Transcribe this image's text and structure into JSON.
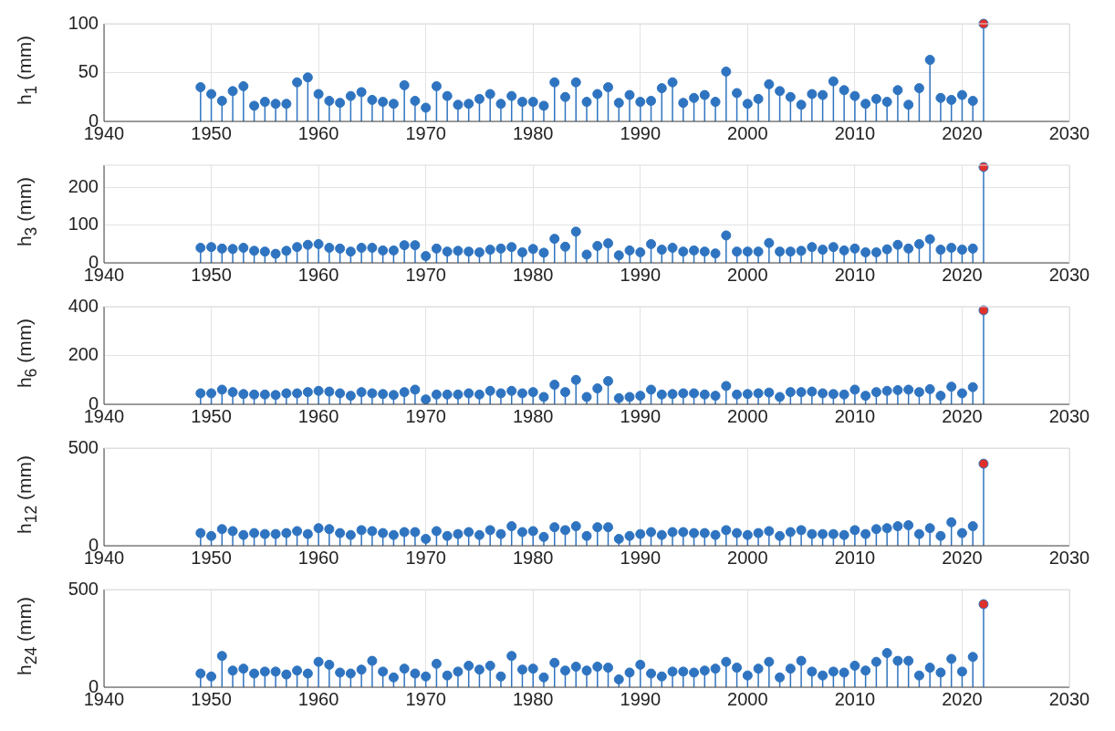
{
  "chart_data": [
    {
      "type": "lollipop",
      "ylabel": "h$_{1}$ (mm)",
      "xlim": [
        1940,
        2030
      ],
      "xticks": [
        1940,
        1950,
        1960,
        1970,
        1980,
        1990,
        2000,
        2010,
        2020,
        2030
      ],
      "ylim": [
        0,
        100
      ],
      "yticks": [
        0,
        50,
        100
      ],
      "grid": true,
      "marker": "circle",
      "x": [
        1949,
        1950,
        1951,
        1952,
        1953,
        1954,
        1955,
        1956,
        1957,
        1958,
        1959,
        1960,
        1961,
        1962,
        1963,
        1964,
        1965,
        1966,
        1967,
        1968,
        1969,
        1970,
        1971,
        1972,
        1973,
        1974,
        1975,
        1976,
        1977,
        1978,
        1979,
        1980,
        1981,
        1982,
        1983,
        1984,
        1985,
        1986,
        1987,
        1988,
        1989,
        1990,
        1991,
        1992,
        1993,
        1994,
        1995,
        1996,
        1997,
        1998,
        1999,
        2000,
        2001,
        2002,
        2003,
        2004,
        2005,
        2006,
        2007,
        2008,
        2009,
        2010,
        2011,
        2012,
        2013,
        2014,
        2015,
        2016,
        2017,
        2018,
        2019,
        2020,
        2021,
        2022
      ],
      "series": [
        {
          "color": "#2f74c0",
          "values": [
            35,
            28,
            21,
            31,
            36,
            16,
            20,
            18,
            18,
            40,
            45,
            28,
            21,
            19,
            26,
            30,
            22,
            20,
            18,
            37,
            21,
            14,
            36,
            26,
            17,
            18,
            23,
            28,
            18,
            26,
            20,
            20,
            16,
            40,
            25,
            40,
            20,
            28,
            35,
            19,
            27,
            20,
            21,
            34,
            40,
            19,
            24,
            27,
            20,
            51,
            29,
            18,
            23,
            38,
            31,
            25,
            17,
            28,
            27,
            41,
            32,
            26,
            18,
            23,
            20,
            32,
            17,
            34,
            63,
            24,
            22,
            27,
            21,
            100
          ],
          "colors": [
            "#2f74c0",
            "#2f74c0",
            "#2f74c0",
            "#2f74c0",
            "#2f74c0",
            "#2f74c0",
            "#2f74c0",
            "#2f74c0",
            "#2f74c0",
            "#2f74c0",
            "#2f74c0",
            "#2f74c0",
            "#2f74c0",
            "#2f74c0",
            "#2f74c0",
            "#2f74c0",
            "#2f74c0",
            "#2f74c0",
            "#2f74c0",
            "#2f74c0",
            "#2f74c0",
            "#2f74c0",
            "#2f74c0",
            "#2f74c0",
            "#2f74c0",
            "#2f74c0",
            "#2f74c0",
            "#2f74c0",
            "#2f74c0",
            "#2f74c0",
            "#2f74c0",
            "#2f74c0",
            "#2f74c0",
            "#2f74c0",
            "#2f74c0",
            "#2f74c0",
            "#2f74c0",
            "#2f74c0",
            "#2f74c0",
            "#2f74c0",
            "#2f74c0",
            "#2f74c0",
            "#2f74c0",
            "#2f74c0",
            "#2f74c0",
            "#2f74c0",
            "#2f74c0",
            "#2f74c0",
            "#2f74c0",
            "#2f74c0",
            "#2f74c0",
            "#2f74c0",
            "#2f74c0",
            "#2f74c0",
            "#2f74c0",
            "#2f74c0",
            "#2f74c0",
            "#2f74c0",
            "#2f74c0",
            "#2f74c0",
            "#2f74c0",
            "#2f74c0",
            "#2f74c0",
            "#2f74c0",
            "#2f74c0",
            "#2f74c0",
            "#2f74c0",
            "#2f74c0",
            "#2f74c0",
            "#2f74c0",
            "#2f74c0",
            "#2f74c0",
            "#2f74c0",
            "#e0302a"
          ]
        }
      ]
    },
    {
      "type": "lollipop",
      "ylabel": "h$_{3}$ (mm)",
      "xlim": [
        1940,
        2030
      ],
      "xticks": [
        1940,
        1950,
        1960,
        1970,
        1980,
        1990,
        2000,
        2010,
        2020,
        2030
      ],
      "ylim": [
        0,
        260
      ],
      "yticks": [
        0,
        100,
        200
      ],
      "grid": true,
      "marker": "circle",
      "x": [
        1949,
        1950,
        1951,
        1952,
        1953,
        1954,
        1955,
        1956,
        1957,
        1958,
        1959,
        1960,
        1961,
        1962,
        1963,
        1964,
        1965,
        1966,
        1967,
        1968,
        1969,
        1970,
        1971,
        1972,
        1973,
        1974,
        1975,
        1976,
        1977,
        1978,
        1979,
        1980,
        1981,
        1982,
        1983,
        1984,
        1985,
        1986,
        1987,
        1988,
        1989,
        1990,
        1991,
        1992,
        1993,
        1994,
        1995,
        1996,
        1997,
        1998,
        1999,
        2000,
        2001,
        2002,
        2003,
        2004,
        2005,
        2006,
        2007,
        2008,
        2009,
        2010,
        2011,
        2012,
        2013,
        2014,
        2015,
        2016,
        2017,
        2018,
        2019,
        2020,
        2021,
        2022
      ],
      "series": [
        {
          "color": "#2f74c0",
          "values": [
            40,
            42,
            38,
            37,
            40,
            32,
            30,
            24,
            32,
            42,
            48,
            50,
            40,
            38,
            30,
            40,
            40,
            33,
            33,
            47,
            47,
            18,
            38,
            30,
            32,
            30,
            28,
            35,
            38,
            42,
            28,
            37,
            27,
            64,
            43,
            83,
            22,
            45,
            52,
            20,
            33,
            28,
            50,
            35,
            40,
            30,
            33,
            30,
            25,
            73,
            30,
            30,
            30,
            53,
            30,
            30,
            32,
            42,
            35,
            42,
            33,
            38,
            28,
            28,
            36,
            48,
            38,
            50,
            63,
            35,
            40,
            35,
            38,
            255
          ],
          "colors": [
            "#2f74c0",
            "#2f74c0",
            "#2f74c0",
            "#2f74c0",
            "#2f74c0",
            "#2f74c0",
            "#2f74c0",
            "#2f74c0",
            "#2f74c0",
            "#2f74c0",
            "#2f74c0",
            "#2f74c0",
            "#2f74c0",
            "#2f74c0",
            "#2f74c0",
            "#2f74c0",
            "#2f74c0",
            "#2f74c0",
            "#2f74c0",
            "#2f74c0",
            "#2f74c0",
            "#2f74c0",
            "#2f74c0",
            "#2f74c0",
            "#2f74c0",
            "#2f74c0",
            "#2f74c0",
            "#2f74c0",
            "#2f74c0",
            "#2f74c0",
            "#2f74c0",
            "#2f74c0",
            "#2f74c0",
            "#2f74c0",
            "#2f74c0",
            "#2f74c0",
            "#2f74c0",
            "#2f74c0",
            "#2f74c0",
            "#2f74c0",
            "#2f74c0",
            "#2f74c0",
            "#2f74c0",
            "#2f74c0",
            "#2f74c0",
            "#2f74c0",
            "#2f74c0",
            "#2f74c0",
            "#2f74c0",
            "#2f74c0",
            "#2f74c0",
            "#2f74c0",
            "#2f74c0",
            "#2f74c0",
            "#2f74c0",
            "#2f74c0",
            "#2f74c0",
            "#2f74c0",
            "#2f74c0",
            "#2f74c0",
            "#2f74c0",
            "#2f74c0",
            "#2f74c0",
            "#2f74c0",
            "#2f74c0",
            "#2f74c0",
            "#2f74c0",
            "#2f74c0",
            "#2f74c0",
            "#2f74c0",
            "#2f74c0",
            "#2f74c0",
            "#2f74c0",
            "#e0302a"
          ]
        }
      ]
    },
    {
      "type": "lollipop",
      "ylabel": "h$_{6}$ (mm)",
      "xlim": [
        1940,
        2030
      ],
      "xticks": [
        1940,
        1950,
        1960,
        1970,
        1980,
        1990,
        2000,
        2010,
        2020,
        2030
      ],
      "ylim": [
        0,
        400
      ],
      "yticks": [
        0,
        200,
        400
      ],
      "grid": true,
      "marker": "circle",
      "x": [
        1949,
        1950,
        1951,
        1952,
        1953,
        1954,
        1955,
        1956,
        1957,
        1958,
        1959,
        1960,
        1961,
        1962,
        1963,
        1964,
        1965,
        1966,
        1967,
        1968,
        1969,
        1970,
        1971,
        1972,
        1973,
        1974,
        1975,
        1976,
        1977,
        1978,
        1979,
        1980,
        1981,
        1982,
        1983,
        1984,
        1985,
        1986,
        1987,
        1988,
        1989,
        1990,
        1991,
        1992,
        1993,
        1994,
        1995,
        1996,
        1997,
        1998,
        1999,
        2000,
        2001,
        2002,
        2003,
        2004,
        2005,
        2006,
        2007,
        2008,
        2009,
        2010,
        2011,
        2012,
        2013,
        2014,
        2015,
        2016,
        2017,
        2018,
        2019,
        2020,
        2021,
        2022
      ],
      "series": [
        {
          "color": "#2f74c0",
          "values": [
            45,
            45,
            60,
            50,
            42,
            40,
            40,
            38,
            45,
            45,
            50,
            55,
            52,
            45,
            35,
            50,
            45,
            42,
            38,
            50,
            60,
            20,
            40,
            40,
            40,
            45,
            40,
            55,
            45,
            55,
            45,
            50,
            30,
            80,
            50,
            100,
            30,
            65,
            95,
            25,
            30,
            35,
            60,
            40,
            42,
            45,
            45,
            40,
            35,
            75,
            40,
            42,
            45,
            48,
            30,
            50,
            50,
            52,
            45,
            42,
            40,
            60,
            35,
            50,
            55,
            58,
            60,
            50,
            62,
            35,
            72,
            45,
            70,
            385
          ],
          "colors": [
            "#2f74c0",
            "#2f74c0",
            "#2f74c0",
            "#2f74c0",
            "#2f74c0",
            "#2f74c0",
            "#2f74c0",
            "#2f74c0",
            "#2f74c0",
            "#2f74c0",
            "#2f74c0",
            "#2f74c0",
            "#2f74c0",
            "#2f74c0",
            "#2f74c0",
            "#2f74c0",
            "#2f74c0",
            "#2f74c0",
            "#2f74c0",
            "#2f74c0",
            "#2f74c0",
            "#2f74c0",
            "#2f74c0",
            "#2f74c0",
            "#2f74c0",
            "#2f74c0",
            "#2f74c0",
            "#2f74c0",
            "#2f74c0",
            "#2f74c0",
            "#2f74c0",
            "#2f74c0",
            "#2f74c0",
            "#2f74c0",
            "#2f74c0",
            "#2f74c0",
            "#2f74c0",
            "#2f74c0",
            "#2f74c0",
            "#2f74c0",
            "#2f74c0",
            "#2f74c0",
            "#2f74c0",
            "#2f74c0",
            "#2f74c0",
            "#2f74c0",
            "#2f74c0",
            "#2f74c0",
            "#2f74c0",
            "#2f74c0",
            "#2f74c0",
            "#2f74c0",
            "#2f74c0",
            "#2f74c0",
            "#2f74c0",
            "#2f74c0",
            "#2f74c0",
            "#2f74c0",
            "#2f74c0",
            "#2f74c0",
            "#2f74c0",
            "#2f74c0",
            "#2f74c0",
            "#2f74c0",
            "#2f74c0",
            "#2f74c0",
            "#2f74c0",
            "#2f74c0",
            "#2f74c0",
            "#2f74c0",
            "#2f74c0",
            "#2f74c0",
            "#2f74c0",
            "#e0302a"
          ]
        }
      ]
    },
    {
      "type": "lollipop",
      "ylabel": "h$_{12}$ (mm)",
      "xlim": [
        1940,
        2030
      ],
      "xticks": [
        1940,
        1950,
        1960,
        1970,
        1980,
        1990,
        2000,
        2010,
        2020,
        2030
      ],
      "ylim": [
        0,
        500
      ],
      "yticks": [
        0,
        500
      ],
      "grid": true,
      "marker": "circle",
      "x": [
        1949,
        1950,
        1951,
        1952,
        1953,
        1954,
        1955,
        1956,
        1957,
        1958,
        1959,
        1960,
        1961,
        1962,
        1963,
        1964,
        1965,
        1966,
        1967,
        1968,
        1969,
        1970,
        1971,
        1972,
        1973,
        1974,
        1975,
        1976,
        1977,
        1978,
        1979,
        1980,
        1981,
        1982,
        1983,
        1984,
        1985,
        1986,
        1987,
        1988,
        1989,
        1990,
        1991,
        1992,
        1993,
        1994,
        1995,
        1996,
        1997,
        1998,
        1999,
        2000,
        2001,
        2002,
        2003,
        2004,
        2005,
        2006,
        2007,
        2008,
        2009,
        2010,
        2011,
        2012,
        2013,
        2014,
        2015,
        2016,
        2017,
        2018,
        2019,
        2020,
        2021,
        2022
      ],
      "series": [
        {
          "color": "#2f74c0",
          "values": [
            65,
            50,
            85,
            75,
            55,
            65,
            60,
            60,
            65,
            75,
            60,
            90,
            85,
            65,
            55,
            80,
            75,
            65,
            55,
            70,
            70,
            35,
            75,
            50,
            60,
            70,
            55,
            80,
            60,
            100,
            70,
            75,
            45,
            95,
            80,
            100,
            50,
            95,
            95,
            35,
            50,
            60,
            70,
            55,
            70,
            70,
            65,
            65,
            55,
            80,
            65,
            55,
            65,
            75,
            50,
            70,
            80,
            60,
            60,
            60,
            55,
            80,
            60,
            85,
            90,
            100,
            105,
            60,
            90,
            50,
            120,
            65,
            100,
            420
          ],
          "colors": [
            "#2f74c0",
            "#2f74c0",
            "#2f74c0",
            "#2f74c0",
            "#2f74c0",
            "#2f74c0",
            "#2f74c0",
            "#2f74c0",
            "#2f74c0",
            "#2f74c0",
            "#2f74c0",
            "#2f74c0",
            "#2f74c0",
            "#2f74c0",
            "#2f74c0",
            "#2f74c0",
            "#2f74c0",
            "#2f74c0",
            "#2f74c0",
            "#2f74c0",
            "#2f74c0",
            "#2f74c0",
            "#2f74c0",
            "#2f74c0",
            "#2f74c0",
            "#2f74c0",
            "#2f74c0",
            "#2f74c0",
            "#2f74c0",
            "#2f74c0",
            "#2f74c0",
            "#2f74c0",
            "#2f74c0",
            "#2f74c0",
            "#2f74c0",
            "#2f74c0",
            "#2f74c0",
            "#2f74c0",
            "#2f74c0",
            "#2f74c0",
            "#2f74c0",
            "#2f74c0",
            "#2f74c0",
            "#2f74c0",
            "#2f74c0",
            "#2f74c0",
            "#2f74c0",
            "#2f74c0",
            "#2f74c0",
            "#2f74c0",
            "#2f74c0",
            "#2f74c0",
            "#2f74c0",
            "#2f74c0",
            "#2f74c0",
            "#2f74c0",
            "#2f74c0",
            "#2f74c0",
            "#2f74c0",
            "#2f74c0",
            "#2f74c0",
            "#2f74c0",
            "#2f74c0",
            "#2f74c0",
            "#2f74c0",
            "#2f74c0",
            "#2f74c0",
            "#2f74c0",
            "#2f74c0",
            "#2f74c0",
            "#2f74c0",
            "#2f74c0",
            "#2f74c0",
            "#e0302a"
          ]
        }
      ]
    },
    {
      "type": "lollipop",
      "ylabel": "h$_{24}$ (mm)",
      "xlim": [
        1940,
        2030
      ],
      "xticks": [
        1940,
        1950,
        1960,
        1970,
        1980,
        1990,
        2000,
        2010,
        2020,
        2030
      ],
      "ylim": [
        0,
        500
      ],
      "yticks": [
        0,
        500
      ],
      "grid": true,
      "marker": "circle",
      "x": [
        1949,
        1950,
        1951,
        1952,
        1953,
        1954,
        1955,
        1956,
        1957,
        1958,
        1959,
        1960,
        1961,
        1962,
        1963,
        1964,
        1965,
        1966,
        1967,
        1968,
        1969,
        1970,
        1971,
        1972,
        1973,
        1974,
        1975,
        1976,
        1977,
        1978,
        1979,
        1980,
        1981,
        1982,
        1983,
        1984,
        1985,
        1986,
        1987,
        1988,
        1989,
        1990,
        1991,
        1992,
        1993,
        1994,
        1995,
        1996,
        1997,
        1998,
        1999,
        2000,
        2001,
        2002,
        2003,
        2004,
        2005,
        2006,
        2007,
        2008,
        2009,
        2010,
        2011,
        2012,
        2013,
        2014,
        2015,
        2016,
        2017,
        2018,
        2019,
        2020,
        2021,
        2022
      ],
      "series": [
        {
          "color": "#2f74c0",
          "values": [
            70,
            55,
            160,
            85,
            95,
            70,
            80,
            80,
            65,
            85,
            70,
            130,
            115,
            75,
            70,
            90,
            135,
            80,
            50,
            95,
            70,
            55,
            120,
            60,
            80,
            110,
            90,
            110,
            55,
            160,
            90,
            95,
            50,
            125,
            85,
            105,
            85,
            105,
            100,
            40,
            75,
            115,
            70,
            55,
            80,
            80,
            75,
            85,
            95,
            130,
            100,
            60,
            95,
            130,
            50,
            95,
            135,
            80,
            60,
            80,
            75,
            110,
            85,
            130,
            175,
            135,
            135,
            60,
            100,
            75,
            145,
            80,
            155,
            425
          ],
          "colors": [
            "#2f74c0",
            "#2f74c0",
            "#2f74c0",
            "#2f74c0",
            "#2f74c0",
            "#2f74c0",
            "#2f74c0",
            "#2f74c0",
            "#2f74c0",
            "#2f74c0",
            "#2f74c0",
            "#2f74c0",
            "#2f74c0",
            "#2f74c0",
            "#2f74c0",
            "#2f74c0",
            "#2f74c0",
            "#2f74c0",
            "#2f74c0",
            "#2f74c0",
            "#2f74c0",
            "#2f74c0",
            "#2f74c0",
            "#2f74c0",
            "#2f74c0",
            "#2f74c0",
            "#2f74c0",
            "#2f74c0",
            "#2f74c0",
            "#2f74c0",
            "#2f74c0",
            "#2f74c0",
            "#2f74c0",
            "#2f74c0",
            "#2f74c0",
            "#2f74c0",
            "#2f74c0",
            "#2f74c0",
            "#2f74c0",
            "#2f74c0",
            "#2f74c0",
            "#2f74c0",
            "#2f74c0",
            "#2f74c0",
            "#2f74c0",
            "#2f74c0",
            "#2f74c0",
            "#2f74c0",
            "#2f74c0",
            "#2f74c0",
            "#2f74c0",
            "#2f74c0",
            "#2f74c0",
            "#2f74c0",
            "#2f74c0",
            "#2f74c0",
            "#2f74c0",
            "#2f74c0",
            "#2f74c0",
            "#2f74c0",
            "#2f74c0",
            "#2f74c0",
            "#2f74c0",
            "#2f74c0",
            "#2f74c0",
            "#2f74c0",
            "#2f74c0",
            "#2f74c0",
            "#2f74c0",
            "#2f74c0",
            "#2f74c0",
            "#2f74c0",
            "#2f74c0",
            "#e0302a"
          ]
        }
      ]
    }
  ]
}
